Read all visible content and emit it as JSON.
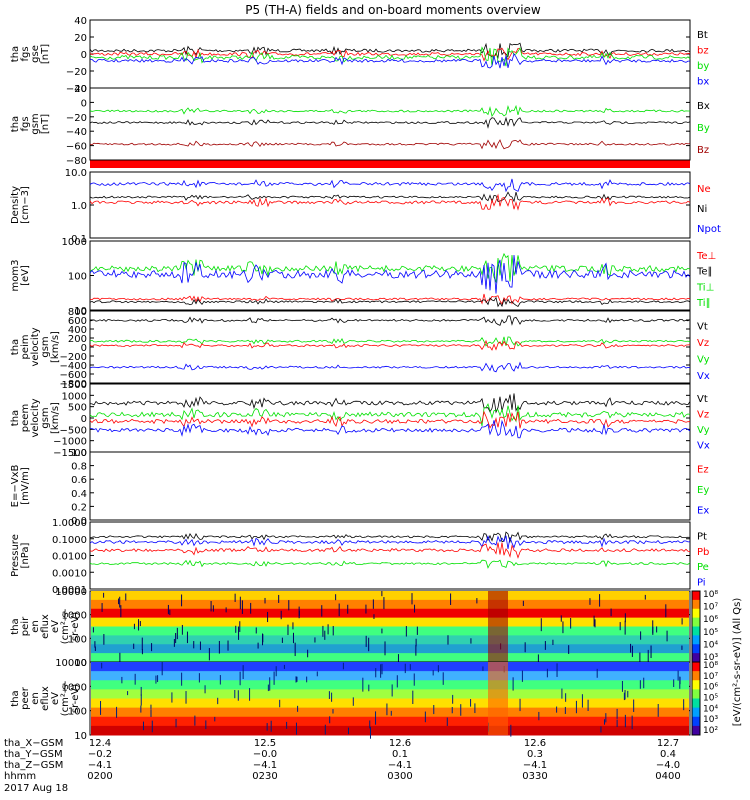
{
  "title": "P5 (TH-A) fields and on-board moments overview",
  "colors": {
    "black": "#000000",
    "red": "#ff0000",
    "green": "#00e000",
    "blue": "#0000ff",
    "darkred": "#a00000",
    "bar": "#ff0000"
  },
  "chart_data": [
    {
      "type": "line",
      "ylabel_lines": [
        "tha",
        "fgs",
        "gse",
        "[nT]"
      ],
      "ylim": [
        -40,
        40
      ],
      "yticks": [
        "40",
        "20",
        "0",
        "−20",
        "−40"
      ],
      "legend": [
        {
          "name": "Bt",
          "color": "#000000"
        },
        {
          "name": "bz",
          "color": "#ff0000"
        },
        {
          "name": "by",
          "color": "#00e000"
        },
        {
          "name": "bx",
          "color": "#0000ff"
        }
      ]
    },
    {
      "type": "line",
      "ylabel_lines": [
        "tha",
        "fgs",
        "gsm",
        "[nT]"
      ],
      "ylim": [
        -90,
        20
      ],
      "yticks": [
        "20",
        "0",
        "−20",
        "−40",
        "−60",
        "−80"
      ],
      "legend": [
        {
          "name": "Bx",
          "color": "#000000"
        },
        {
          "name": "By",
          "color": "#00e000"
        },
        {
          "name": "Bz",
          "color": "#a00000"
        }
      ]
    },
    {
      "type": "line",
      "ylabel_lines": [
        "Density",
        "[cm−3]"
      ],
      "log": true,
      "ylim": [
        0.1,
        10.0
      ],
      "yticks": [
        "10.0",
        "1.0",
        "0.1"
      ],
      "legend": [
        {
          "name": "Ne",
          "color": "#ff0000"
        },
        {
          "name": "Ni",
          "color": "#000000"
        },
        {
          "name": "Npot",
          "color": "#0000ff"
        }
      ]
    },
    {
      "type": "line",
      "ylabel_lines": [
        "mom3",
        "[eV]"
      ],
      "log": true,
      "ylim": [
        10,
        3000
      ],
      "yticks": [
        "1000",
        "100",
        "10"
      ],
      "legend": [
        {
          "name": "Te⊥",
          "color": "#ff0000"
        },
        {
          "name": "Te∥",
          "color": "#000000"
        },
        {
          "name": "Ti⊥",
          "color": "#00e000"
        },
        {
          "name": "Ti∥",
          "color": "#00e000"
        }
      ]
    },
    {
      "type": "line",
      "ylabel_lines": [
        "tha",
        "peim",
        "velocity",
        "gsm",
        "[km/s]"
      ],
      "ylim": [
        -800,
        800
      ],
      "yticks": [
        "800",
        "600",
        "400",
        "200",
        "0",
        "−200",
        "−400",
        "−600",
        "−800"
      ],
      "legend": [
        {
          "name": "Vt",
          "color": "#000000"
        },
        {
          "name": "Vz",
          "color": "#ff0000"
        },
        {
          "name": "Vy",
          "color": "#00e000"
        },
        {
          "name": "Vx",
          "color": "#0000ff"
        }
      ]
    },
    {
      "type": "line",
      "ylabel_lines": [
        "tha",
        "peem",
        "velocity",
        "gsm",
        "[km/s]"
      ],
      "ylim": [
        -1500,
        1500
      ],
      "yticks": [
        "1500",
        "1000",
        "500",
        "0",
        "−500",
        "−1000",
        "−1500"
      ],
      "legend": [
        {
          "name": "Vt",
          "color": "#000000"
        },
        {
          "name": "Vz",
          "color": "#ff0000"
        },
        {
          "name": "Vy",
          "color": "#00e000"
        },
        {
          "name": "Vx",
          "color": "#0000ff"
        }
      ]
    },
    {
      "type": "line",
      "ylabel_lines": [
        "E=−VxB",
        "[mV/m]"
      ],
      "ylim": [
        0,
        1
      ],
      "yticks": [
        "1.0",
        "0.8",
        "0.6",
        "0.4",
        "0.2",
        "0.0"
      ],
      "legend": [
        {
          "name": "Ez",
          "color": "#ff0000"
        },
        {
          "name": "Ey",
          "color": "#00e000"
        },
        {
          "name": "Ex",
          "color": "#0000ff"
        }
      ]
    },
    {
      "type": "line",
      "ylabel_lines": [
        "Pressure",
        "[nPa]"
      ],
      "log": true,
      "ylim": [
        0.0001,
        1.0
      ],
      "yticks": [
        "1.0000",
        "0.1000",
        "0.0100",
        "0.0010",
        "0.0001"
      ],
      "legend": [
        {
          "name": "Pt",
          "color": "#000000"
        },
        {
          "name": "Pb",
          "color": "#ff0000"
        },
        {
          "name": "Pe",
          "color": "#00e000"
        },
        {
          "name": "Pi",
          "color": "#0000ff"
        }
      ]
    },
    {
      "type": "heatmap",
      "ylabel_lines": [
        "tha",
        "peir",
        "en",
        "eflux",
        "eV",
        "(cm²-s-",
        "sr-eV)"
      ],
      "log": true,
      "yticks": [
        "10000",
        "1000",
        "100",
        "10"
      ]
    },
    {
      "type": "heatmap",
      "ylabel_lines": [
        "tha",
        "peer",
        "en",
        "eflux",
        "eV",
        "(cm²-s-",
        "sr-eV)"
      ],
      "log": true,
      "yticks": [
        "10000",
        "1000",
        "100",
        "10"
      ]
    }
  ],
  "colorbars": [
    {
      "ticks": [
        "10⁸",
        "10⁷",
        "10⁶",
        "10⁵",
        "10⁴",
        "10³"
      ]
    },
    {
      "ticks": [
        "10⁸",
        "10⁷",
        "10⁶",
        "10⁵",
        "10⁴",
        "10³",
        "10²"
      ]
    }
  ],
  "colorbar_label": "[eV/(cm²-s-sr-eV)] (All Qs)",
  "xaxis": {
    "rows": [
      {
        "label": "tha_X−GSM",
        "values": [
          "12.4",
          "12.5",
          "12.6",
          "12.6",
          "12.7"
        ]
      },
      {
        "label": "tha_Y−GSM",
        "values": [
          "−0.2",
          "−0.0",
          "0.1",
          "0.3",
          "0.4"
        ]
      },
      {
        "label": "tha_Z−GSM",
        "values": [
          "−4.1",
          "−4.1",
          "−4.1",
          "−4.1",
          "−4.0"
        ]
      },
      {
        "label": "hhmm",
        "values": [
          "0200",
          "0230",
          "0300",
          "0330",
          "0400"
        ]
      }
    ],
    "date": "2017 Aug 18"
  }
}
